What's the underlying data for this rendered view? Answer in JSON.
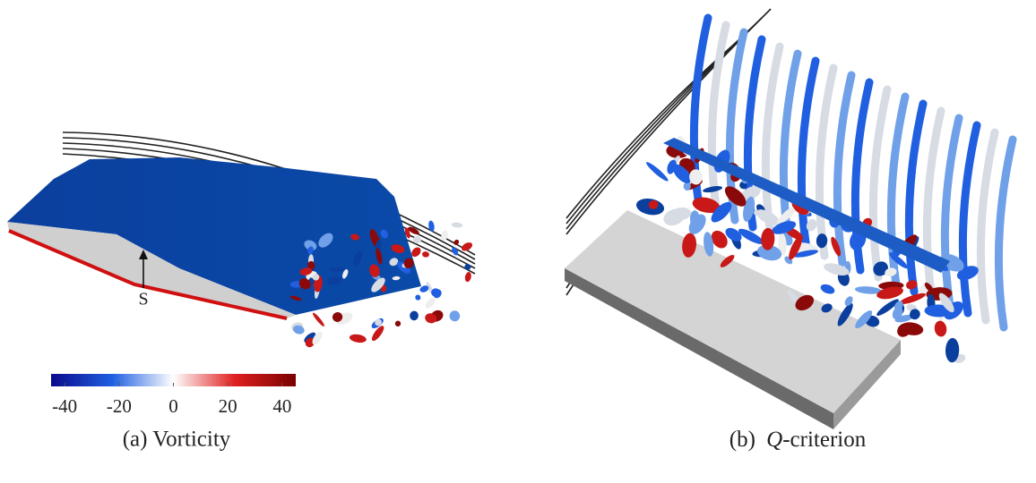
{
  "figure": {
    "panel_a": {
      "marker": "S",
      "caption": "(a) Vorticity",
      "colorbar": {
        "lim": [
          -45,
          45
        ],
        "ticks": [
          -40,
          -20,
          0,
          20,
          40
        ]
      }
    },
    "panel_b": {
      "caption": {
        "label": "(b)",
        "symbol": "Q",
        "text": "-criterion"
      }
    }
  }
}
